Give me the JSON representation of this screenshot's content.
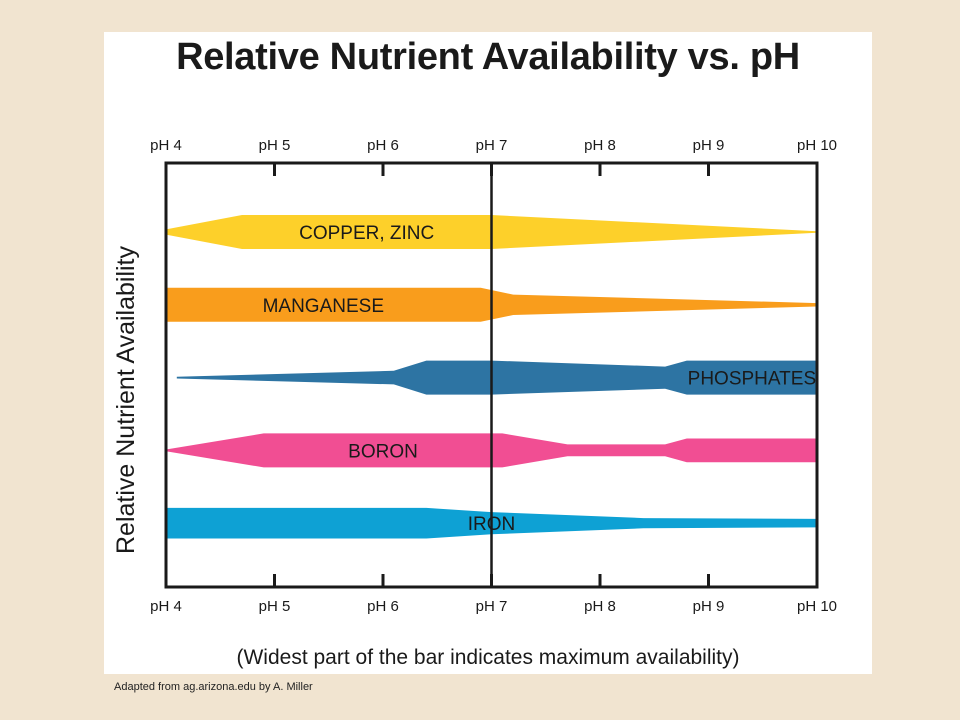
{
  "slide": {
    "note": "(Widest part of the bar indicates maximum availability)",
    "source": "Adapted from ag.arizona.edu by A. Miller"
  },
  "chart_data": {
    "type": "bar",
    "title": "Relative Nutrient Availability vs. pH",
    "ylabel": "Relative Nutrient Availability",
    "xlabel": "",
    "xlim": [
      4,
      10
    ],
    "x_ticks": [
      4,
      5,
      6,
      7,
      8,
      9,
      10
    ],
    "x_tick_labels": [
      "pH 4",
      "pH 5",
      "pH 6",
      "pH 7",
      "pH 8",
      "pH 9",
      "pH 10"
    ],
    "reference_line_x": 7,
    "grid": false,
    "series": [
      {
        "name": "COPPER, ZINC",
        "color": "#fdd02a",
        "profile": [
          [
            4,
            0.15
          ],
          [
            4.7,
            1.0
          ],
          [
            7.0,
            1.0
          ],
          [
            10,
            0.05
          ]
        ]
      },
      {
        "name": "MANGANESE",
        "color": "#f99d1c",
        "profile": [
          [
            4,
            1.0
          ],
          [
            6.9,
            1.0
          ],
          [
            7.2,
            0.6
          ],
          [
            10,
            0.1
          ]
        ]
      },
      {
        "name": "PHOSPHATES",
        "color": "#2d74a3",
        "profile": [
          [
            4.1,
            0.05
          ],
          [
            6.1,
            0.4
          ],
          [
            6.4,
            1.0
          ],
          [
            7.0,
            1.0
          ],
          [
            8.6,
            0.65
          ],
          [
            8.8,
            1.0
          ],
          [
            10,
            1.0
          ]
        ]
      },
      {
        "name": "BORON",
        "color": "#f14e93",
        "profile": [
          [
            4,
            0.05
          ],
          [
            4.9,
            1.0
          ],
          [
            7.1,
            1.0
          ],
          [
            7.7,
            0.35
          ],
          [
            8.6,
            0.35
          ],
          [
            8.8,
            0.7
          ],
          [
            10,
            0.7
          ]
        ]
      },
      {
        "name": "IRON",
        "color": "#0ea1d4",
        "profile": [
          [
            4,
            0.9
          ],
          [
            6.4,
            0.9
          ],
          [
            7.0,
            0.65
          ],
          [
            8.4,
            0.3
          ],
          [
            10,
            0.25
          ]
        ]
      }
    ]
  }
}
